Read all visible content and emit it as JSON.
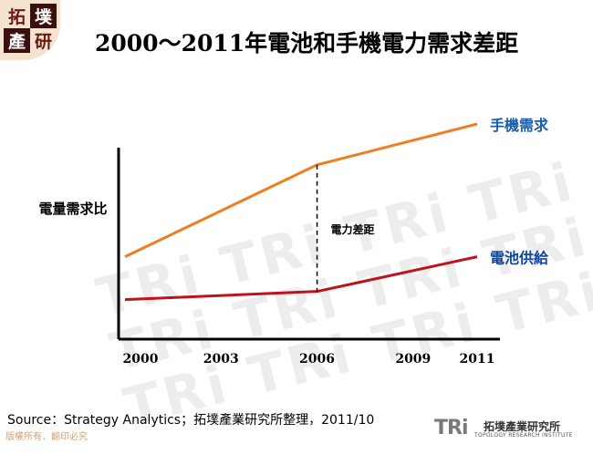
{
  "header": {
    "logo_chars": [
      "拓",
      "墣",
      "產",
      "研"
    ],
    "title": "2000～2011年電池和手機電力需求差距"
  },
  "chart_data": {
    "type": "line",
    "title": "2000～2011年電池和手機電力需求差距",
    "ylabel": "電量需求比",
    "xlabel": "",
    "categories": [
      "2000",
      "2003",
      "2006",
      "2009",
      "2011"
    ],
    "series": [
      {
        "name": "手機需求",
        "color": "#f07d1e",
        "points": [
          [
            2000,
            35
          ],
          [
            2006,
            80
          ],
          [
            2011,
            100
          ]
        ]
      },
      {
        "name": "電池供給",
        "color": "#c0121a",
        "points": [
          [
            2000,
            14
          ],
          [
            2006,
            18
          ],
          [
            2011,
            35
          ]
        ]
      }
    ],
    "annotation": {
      "text": "電力差距",
      "x": 2006
    },
    "xlim": [
      2000,
      2011
    ],
    "grid": false,
    "legend": "inline-right"
  },
  "footer": {
    "source": "Source：Strategy Analytics；拓墣產業研究所整理，2011/10",
    "copyright": "版權所有．翻印必究",
    "brand_mark": "TRi",
    "brand_name": "拓墣產業研究所",
    "brand_sub": "TOPOLOGY RESEARCH INSTITUTE"
  },
  "watermark": {
    "text": "TRi"
  }
}
